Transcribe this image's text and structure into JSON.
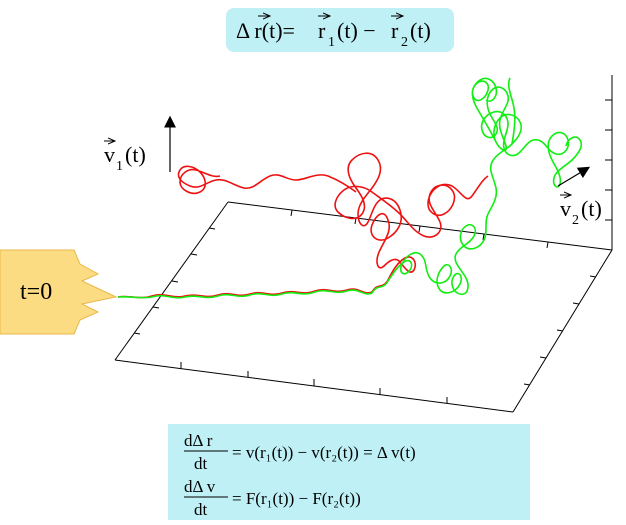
{
  "top_formula": {
    "lhs": "Δ r(t)=",
    "r1": "r",
    "sub1": "1",
    "mid": "(t) −",
    "r2": "r",
    "sub2": "2",
    "tail": "(t)",
    "box_color": "#bff0f5"
  },
  "labels": {
    "v1": "v",
    "v1_sub": "1",
    "v1_tail": "(t)",
    "v2": "v",
    "v2_sub": "2",
    "v2_tail": "(t)",
    "t0": "t=0",
    "t0_color": "#fbdc82"
  },
  "bottom_box": {
    "color": "#bff0f5",
    "eq1": {
      "num": "dΔ r",
      "den": "dt",
      "rhs": "= v(r₁(t)) − v(r₂(t)) =  Δ v(t)"
    },
    "eq2": {
      "num": "dΔ v",
      "den": "dt",
      "rhs": "= F(r₁(t)) − F(r₂(t))"
    }
  },
  "colors": {
    "trajectory_1": "#ee1111",
    "trajectory_2": "#11ee11",
    "axes": "#000000"
  }
}
